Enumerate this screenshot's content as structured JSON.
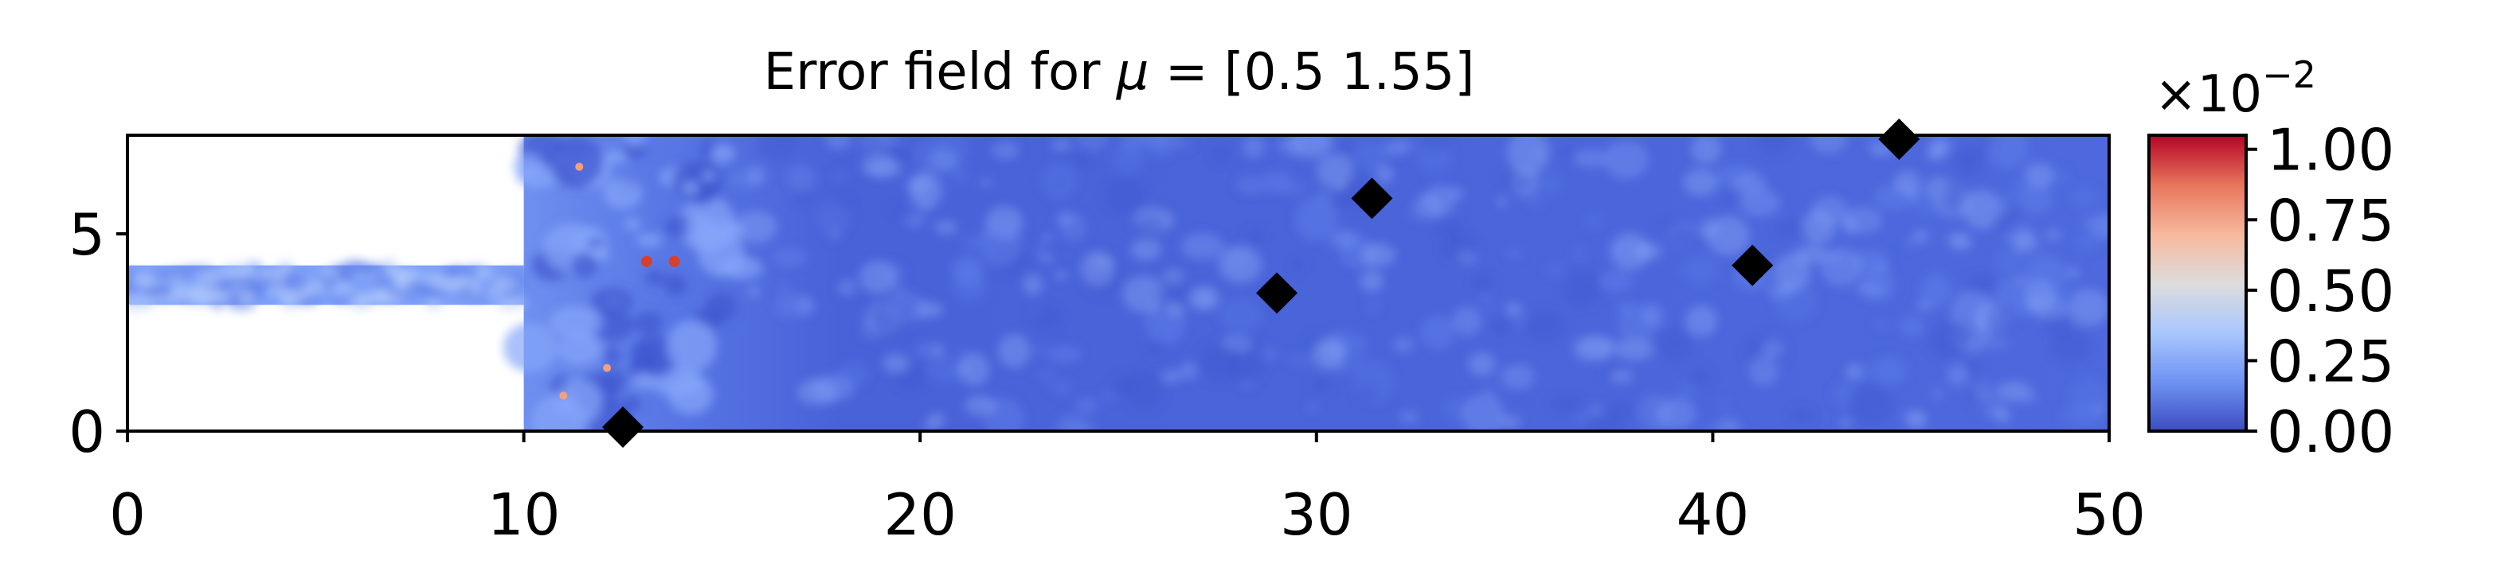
{
  "chart_data": {
    "type": "heatmap",
    "title_prefix": "Error field for ",
    "title_mu": "μ",
    "title_suffix": " = [0.5  1.55]",
    "xlim": [
      0,
      50
    ],
    "ylim": [
      0,
      7.5
    ],
    "x_ticks": [
      0,
      10,
      20,
      30,
      40,
      50
    ],
    "x_tick_labels": [
      "0",
      "10",
      "20",
      "30",
      "40",
      "50"
    ],
    "y_ticks": [
      0,
      5
    ],
    "y_tick_labels": [
      "0",
      "5"
    ],
    "domain": {
      "inlet_x_end": 10,
      "inlet_y_range": [
        3.2,
        4.2
      ]
    },
    "markers": [
      {
        "x": 12.5,
        "y": 0.1
      },
      {
        "x": 29.0,
        "y": 3.5
      },
      {
        "x": 31.4,
        "y": 5.9
      },
      {
        "x": 41.0,
        "y": 4.2
      },
      {
        "x": 44.7,
        "y": 7.4
      }
    ],
    "colorbar": {
      "range": [
        0,
        1.05
      ],
      "ticks": [
        0,
        0.25,
        0.5,
        0.75,
        1.0
      ],
      "tick_labels": [
        "0.00",
        "0.25",
        "0.50",
        "0.75",
        "1.00"
      ],
      "scale_base": "×10",
      "scale_exp": "−2",
      "colormap": [
        "#3b4cc0",
        "#6f92f3",
        "#aac7fd",
        "#dddcdc",
        "#f7b89c",
        "#e7745b",
        "#b40426"
      ]
    },
    "colors": {
      "field_base": "#4a66dc",
      "inlet_mix": "#7da0f8",
      "marker": "#000000"
    }
  }
}
